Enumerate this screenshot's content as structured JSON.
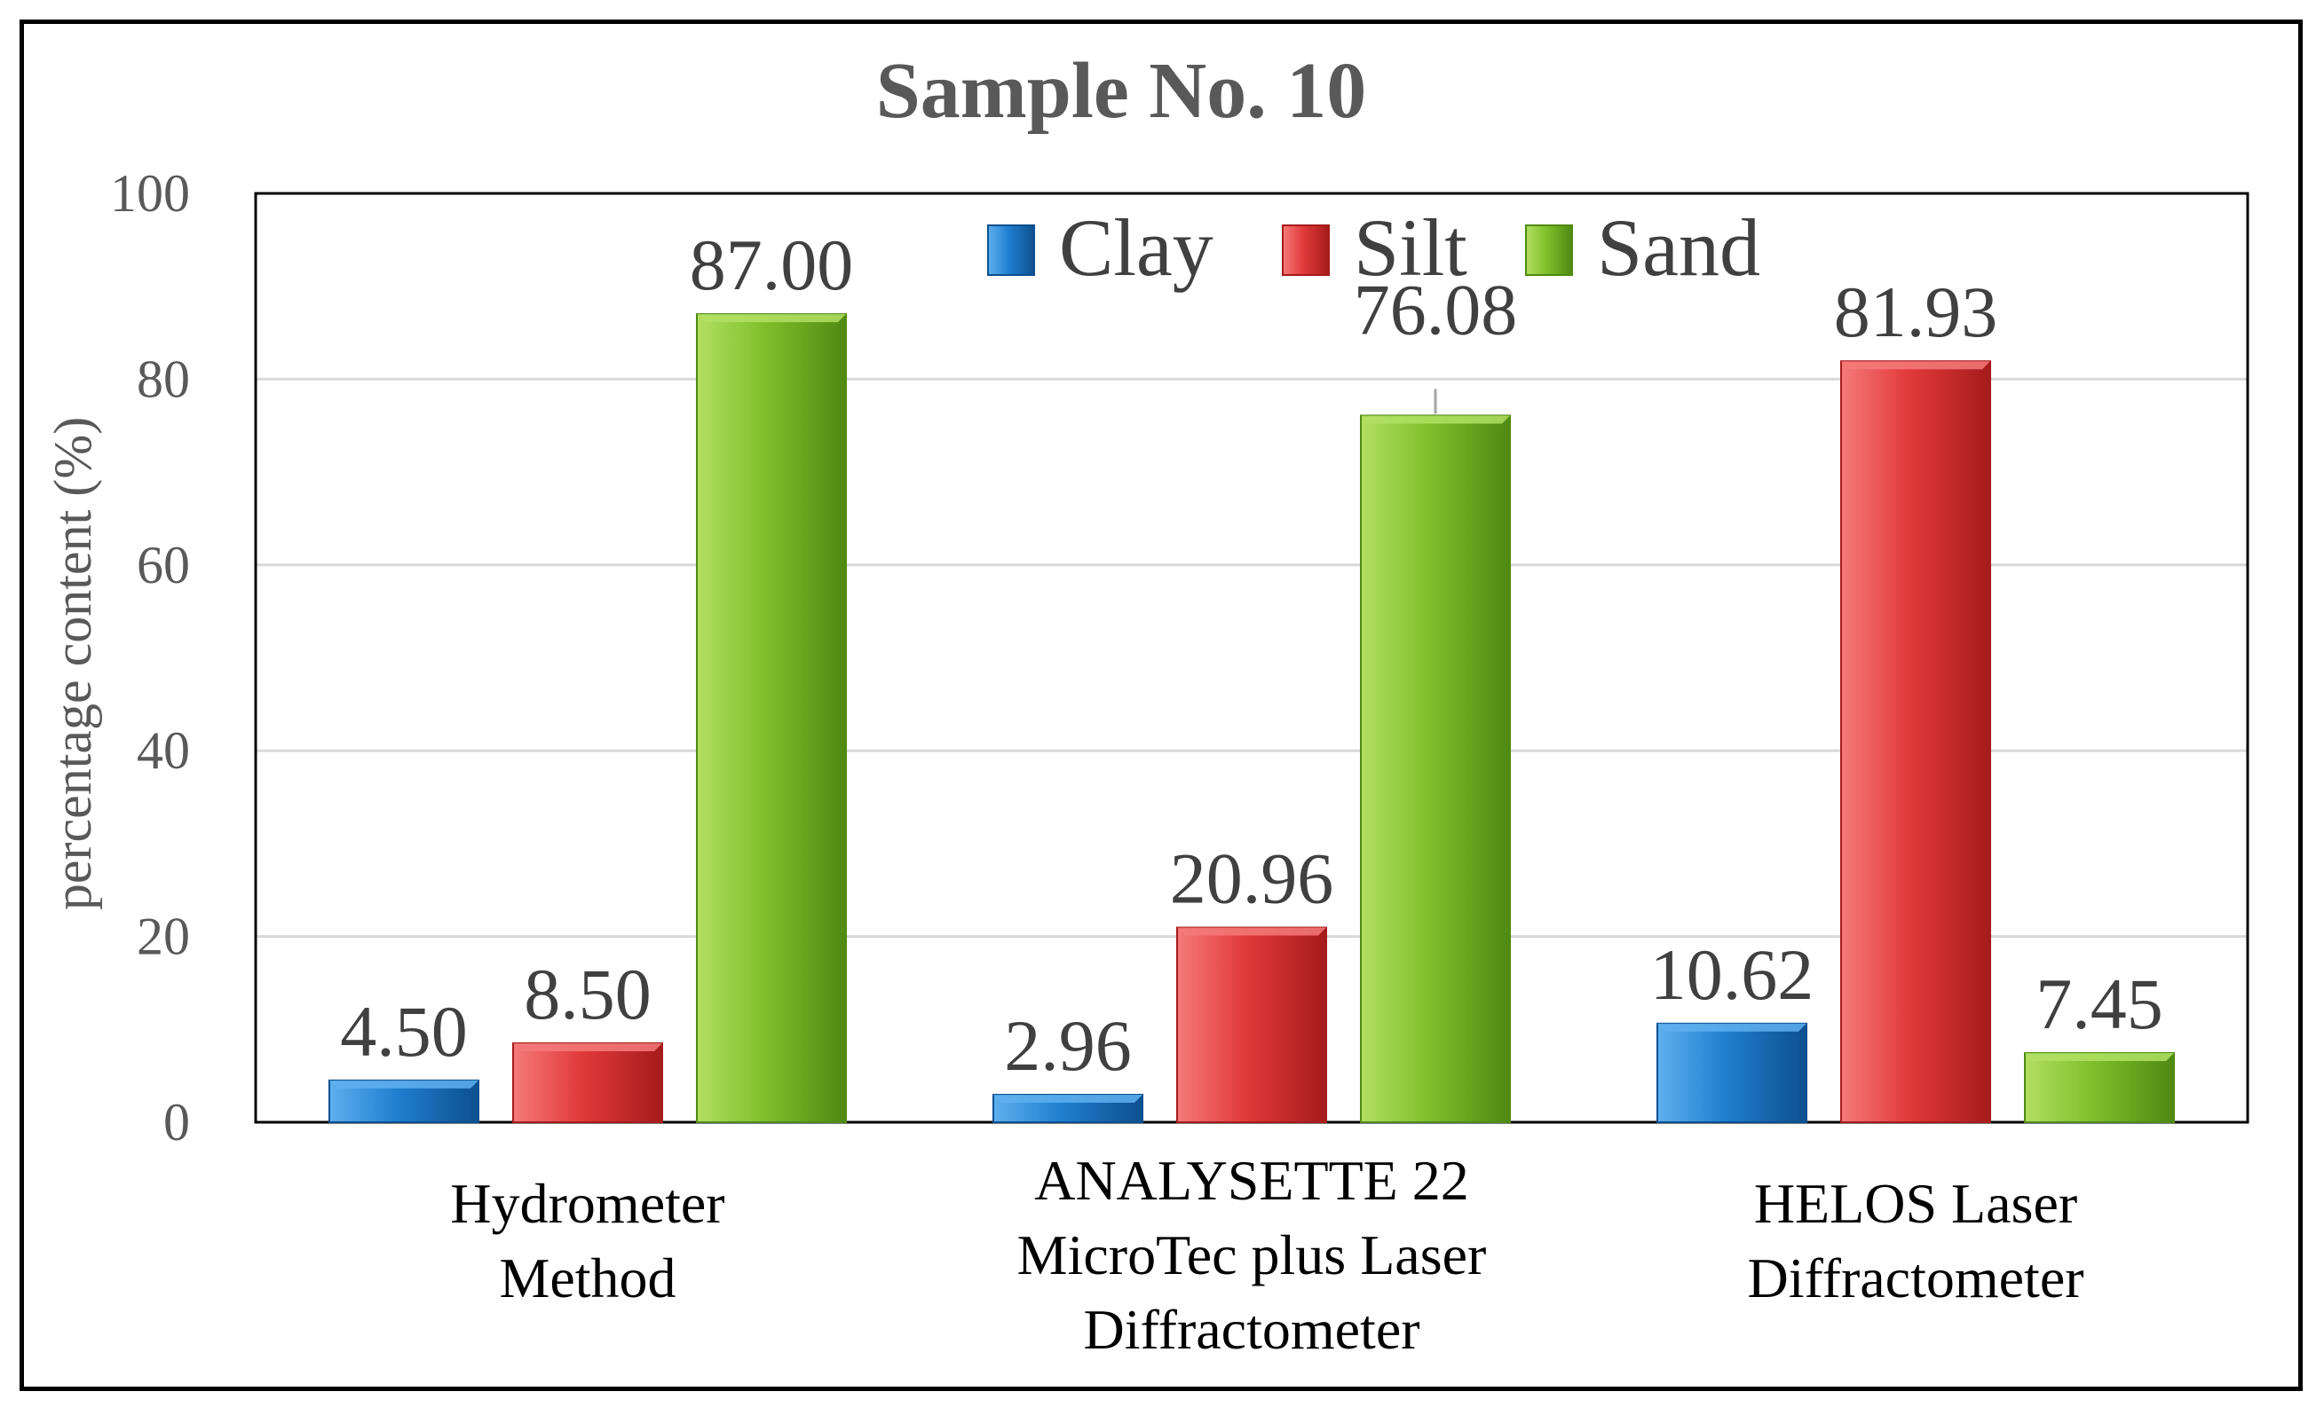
{
  "chart_data": {
    "type": "bar",
    "title": "Sample No. 10",
    "xlabel": "",
    "ylabel": "percentage content (%)",
    "ylim": [
      0,
      100
    ],
    "yticks": [
      "0",
      "20",
      "40",
      "60",
      "80",
      "100"
    ],
    "grid": true,
    "legend_position": "top-center",
    "categories": [
      [
        "Hydrometer",
        "Method"
      ],
      [
        "ANALYSETTE 22",
        "MicroTec plus Laser",
        "Diffractometer"
      ],
      [
        "HELOS Laser",
        "Diffractometer"
      ]
    ],
    "series": [
      {
        "name": "Clay",
        "values": [
          4.5,
          2.96,
          10.62
        ],
        "labels": [
          "4.50",
          "2.96",
          "10.62"
        ],
        "color": "#1f7fd0",
        "dark": "#0d4f8f",
        "light": "#5fb0ee"
      },
      {
        "name": "Silt",
        "values": [
          8.5,
          20.96,
          81.93
        ],
        "labels": [
          "8.50",
          "20.96",
          "81.93"
        ],
        "color": "#e23a3a",
        "dark": "#a61b1b",
        "light": "#f57a7a"
      },
      {
        "name": "Sand",
        "values": [
          87.0,
          76.08,
          7.45
        ],
        "labels": [
          "87.00",
          "76.08",
          "7.45"
        ],
        "color": "#7fbf2a",
        "dark": "#4f8a12",
        "light": "#b2e063"
      }
    ]
  }
}
